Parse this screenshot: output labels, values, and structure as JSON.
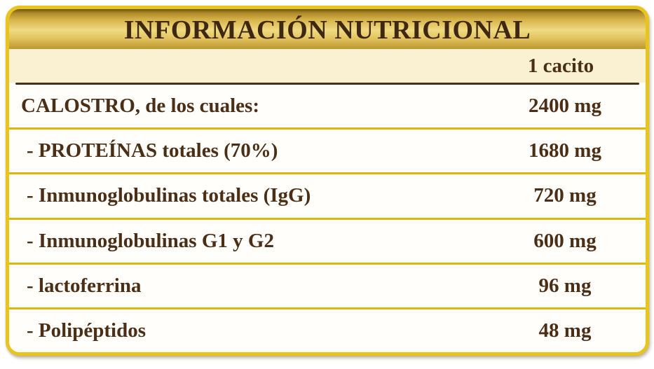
{
  "label": {
    "title": "INFORMACIÓN NUTRICIONAL",
    "serving_header": "1 cacito",
    "rows": [
      {
        "name": "CALOSTRO, de los cuales:",
        "amount": "2400 mg"
      },
      {
        "name": "- PROTEÍNAS totales (70%)",
        "amount": "1680 mg"
      },
      {
        "name": "- Inmunoglobulinas totales (IgG)",
        "amount": "720 mg"
      },
      {
        "name": "- Inmunoglobulinas G1 y G2",
        "amount": "600 mg"
      },
      {
        "name": "- lactoferrina",
        "amount": "96 mg"
      },
      {
        "name": "- Polipéptidos",
        "amount": "48 mg"
      }
    ],
    "colors": {
      "border_gold": "#e9c41c",
      "header_gradient_top": "#b18c2a",
      "header_gradient_light": "#f0da82",
      "header_gradient_bottom": "#bb9531",
      "subheader_cream": "#faf0d2",
      "row_background": "#fffefb",
      "text_brown": "#4a2e16",
      "title_brown": "#3f2813",
      "separator_gold": "#dcb513",
      "separator_dark": "#47301a"
    }
  }
}
